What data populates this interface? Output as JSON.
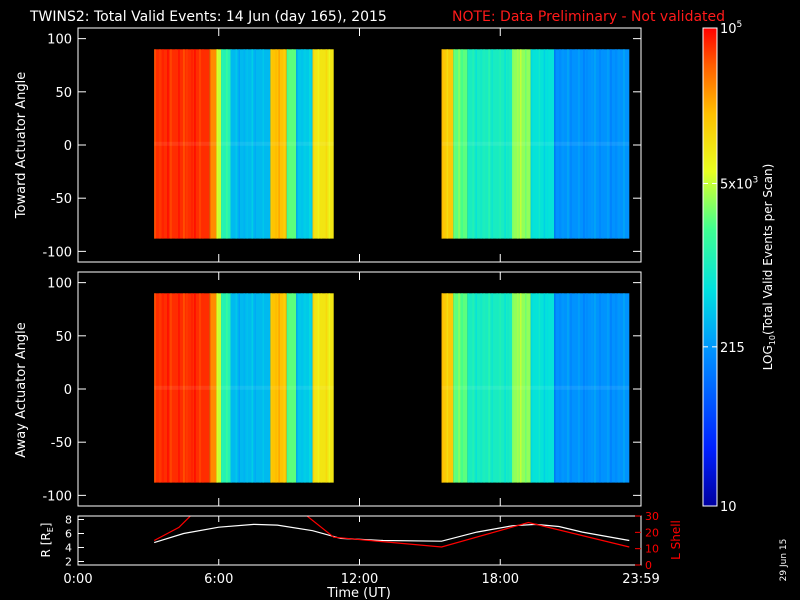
{
  "header": {
    "title": "TWINS2: Total Valid Events: 14 Jun (day 165), 2015",
    "note": "NOTE: Data Preliminary - Not validated"
  },
  "side_date": "29 Jun 15",
  "chart_data": [
    {
      "type": "heatmap",
      "panel": "top",
      "ylabel": "Toward Actuator Angle",
      "ylim": [
        -110,
        110
      ],
      "yticks": [
        100,
        50,
        0,
        -50,
        -100
      ],
      "x_unit": "hours UT",
      "data_blocks_hours": [
        [
          3.25,
          10.9
        ],
        [
          15.5,
          23.5
        ]
      ],
      "angle_range": [
        -88,
        90
      ],
      "column_levels": [
        {
          "t0": 3.25,
          "t1": 5.6,
          "log_events": 4.85
        },
        {
          "t0": 5.6,
          "t1": 5.9,
          "log_events": 4.5
        },
        {
          "t0": 5.9,
          "t1": 6.1,
          "log_events": 3.7
        },
        {
          "t0": 6.1,
          "t1": 6.5,
          "log_events": 3.1
        },
        {
          "t0": 6.5,
          "t1": 8.2,
          "log_events": 2.55
        },
        {
          "t0": 8.2,
          "t1": 8.9,
          "log_events": 4.25
        },
        {
          "t0": 8.9,
          "t1": 9.3,
          "log_events": 3.4
        },
        {
          "t0": 9.3,
          "t1": 10.0,
          "log_events": 2.65
        },
        {
          "t0": 10.0,
          "t1": 10.9,
          "log_events": 4.0
        },
        {
          "t0": 15.5,
          "t1": 16.0,
          "log_events": 4.2
        },
        {
          "t0": 16.0,
          "t1": 16.6,
          "log_events": 3.4
        },
        {
          "t0": 16.6,
          "t1": 18.5,
          "log_events": 3.0
        },
        {
          "t0": 18.5,
          "t1": 19.3,
          "log_events": 3.55
        },
        {
          "t0": 19.3,
          "t1": 20.3,
          "log_events": 2.85
        },
        {
          "t0": 20.3,
          "t1": 23.5,
          "log_events": 2.3
        }
      ]
    },
    {
      "type": "heatmap",
      "panel": "middle",
      "ylabel": "Away Actuator Angle",
      "ylim": [
        -110,
        110
      ],
      "yticks": [
        100,
        50,
        0,
        -50,
        -100
      ],
      "x_unit": "hours UT",
      "data_blocks_hours": [
        [
          3.25,
          10.9
        ],
        [
          15.5,
          23.5
        ]
      ],
      "angle_range": [
        -88,
        90
      ],
      "column_levels": [
        {
          "t0": 3.25,
          "t1": 5.6,
          "log_events": 4.85
        },
        {
          "t0": 5.6,
          "t1": 5.9,
          "log_events": 4.5
        },
        {
          "t0": 5.9,
          "t1": 6.1,
          "log_events": 3.7
        },
        {
          "t0": 6.1,
          "t1": 6.5,
          "log_events": 3.1
        },
        {
          "t0": 6.5,
          "t1": 8.2,
          "log_events": 2.55
        },
        {
          "t0": 8.2,
          "t1": 8.9,
          "log_events": 4.25
        },
        {
          "t0": 8.9,
          "t1": 9.3,
          "log_events": 3.4
        },
        {
          "t0": 9.3,
          "t1": 10.0,
          "log_events": 2.65
        },
        {
          "t0": 10.0,
          "t1": 10.9,
          "log_events": 4.0
        },
        {
          "t0": 15.5,
          "t1": 16.0,
          "log_events": 4.2
        },
        {
          "t0": 16.0,
          "t1": 16.6,
          "log_events": 3.4
        },
        {
          "t0": 16.6,
          "t1": 18.5,
          "log_events": 3.0
        },
        {
          "t0": 18.5,
          "t1": 19.3,
          "log_events": 3.55
        },
        {
          "t0": 19.3,
          "t1": 20.3,
          "log_events": 2.85
        },
        {
          "t0": 20.3,
          "t1": 23.5,
          "log_events": 2.3
        }
      ]
    },
    {
      "type": "line",
      "panel": "bottom",
      "ylabel_left": "R [R",
      "ylabel_left_sub": "E",
      "ylabel_left_end": "]",
      "ylabel_right": "L Shell",
      "ylim_left": [
        1.5,
        8.5
      ],
      "yticks_left": [
        2,
        4,
        6,
        8
      ],
      "ylim_right": [
        0,
        30
      ],
      "yticks_right": [
        0,
        10,
        20,
        30
      ],
      "series": [
        {
          "axis": "left",
          "color": "#ffffff",
          "x": [
            3.25,
            4.5,
            6,
            7.5,
            8.5,
            10,
            11.2,
            13,
            15.5,
            17,
            18.5,
            19.5,
            20.5,
            21.5,
            23.5
          ],
          "y": [
            4.7,
            6.0,
            6.9,
            7.3,
            7.2,
            6.4,
            5.3,
            5.0,
            4.9,
            6.2,
            7.1,
            7.3,
            7.0,
            6.2,
            5.0
          ]
        },
        {
          "axis": "right",
          "color": "#ff0000",
          "segments": [
            {
              "x": [
                3.25,
                4.3,
                5.0
              ],
              "y": [
                15,
                23,
                33
              ]
            },
            {
              "x": [
                9.5,
                10.9,
                15.5,
                19.2,
                23.5
              ],
              "y": [
                33,
                17,
                11,
                26,
                11
              ]
            }
          ]
        }
      ]
    }
  ],
  "x_axis": {
    "label": "Time (UT)",
    "ticks": [
      {
        "hour": 0,
        "label": "0:00"
      },
      {
        "hour": 6,
        "label": "6:00"
      },
      {
        "hour": 12,
        "label": "12:00"
      },
      {
        "hour": 18,
        "label": "18:00"
      },
      {
        "hour": 24,
        "label": "23:59"
      }
    ],
    "xlim_hours": [
      0,
      24
    ]
  },
  "colorbar": {
    "label_pre": "LOG",
    "label_sub": "10",
    "label_post": "(Total Valid Events per Scan)",
    "scale": "log",
    "log_range": [
      1,
      5
    ],
    "ticks": [
      {
        "log": 5,
        "base": "10",
        "exp": "5",
        "label": ""
      },
      {
        "log": 3.699,
        "base": "5x10",
        "exp": "3",
        "label": ""
      },
      {
        "log": 2.332,
        "base": "",
        "exp": "",
        "label": "215"
      },
      {
        "log": 1,
        "base": "",
        "exp": "",
        "label": "10"
      }
    ]
  },
  "colors": {
    "title": "#ffffff",
    "note": "#ff1a1a",
    "r_line": "#ffffff",
    "l_line": "#ff0000"
  }
}
